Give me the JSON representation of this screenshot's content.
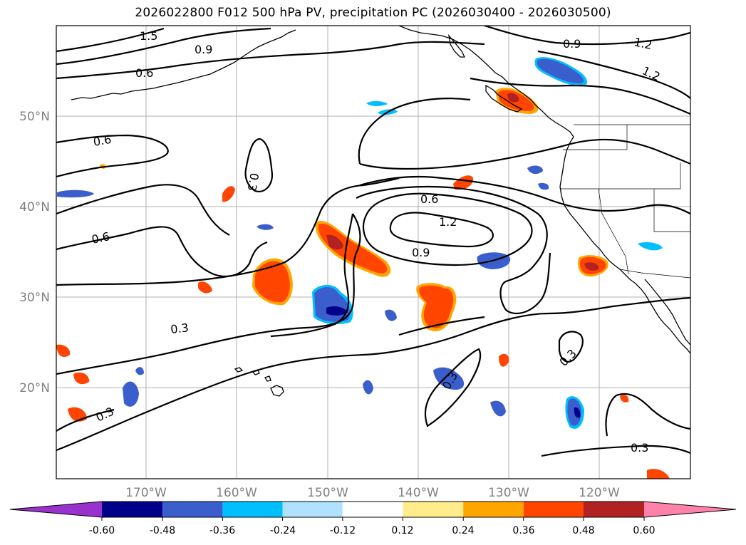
{
  "title": "2026022800 F012 500 hPa PV, precipitation PC (2026030400 - 2026030500)",
  "map": {
    "lat_labels": [
      "50°N",
      "40°N",
      "30°N",
      "20°N"
    ],
    "lon_labels": [
      "170°W",
      "160°W",
      "150°W",
      "140°W",
      "130°W",
      "120°W"
    ],
    "grid_color": "#b0b0b0",
    "tick_label_color": "#808080",
    "contour_color": "#000000",
    "contour_labels": [
      "1.5",
      "0.9",
      "0.6",
      "0.9",
      "1.2",
      "1.2",
      "0.6",
      "0.3",
      "0.6",
      "0.6",
      "1.2",
      "0.9",
      "0.3",
      "0.3",
      "0.3",
      "0.3",
      "0.3"
    ]
  },
  "colorbar": {
    "tick_labels": [
      "-0.60",
      "-0.48",
      "-0.36",
      "-0.24",
      "-0.12",
      "0.12",
      "0.24",
      "0.36",
      "0.48",
      "0.60"
    ],
    "colors": [
      "#9932cc",
      "#00008b",
      "#3a5fcd",
      "#00bfff",
      "#b0e2ff",
      "#ffffff",
      "#ffec8b",
      "#ffa500",
      "#ff4500",
      "#b22222",
      "#ff82ab"
    ]
  }
}
